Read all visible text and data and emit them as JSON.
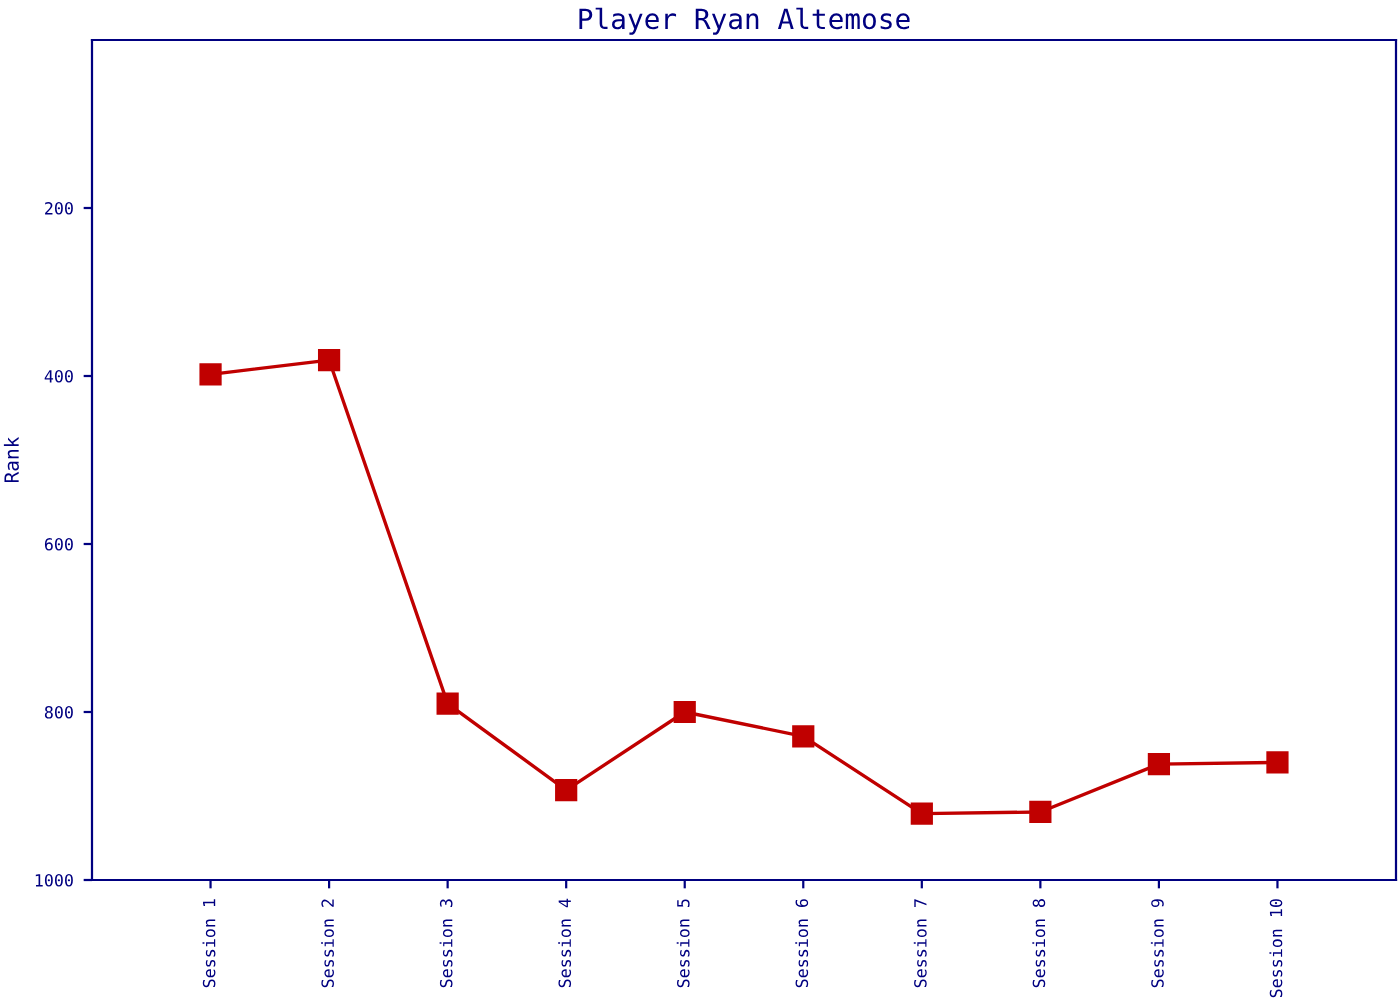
{
  "chart_data": {
    "type": "line",
    "title": "Player Ryan Altemose",
    "ylabel": "Rank",
    "categories": [
      "Session 1",
      "Session 2",
      "Session 3",
      "Session 4",
      "Session 5",
      "Session 6",
      "Session 7",
      "Session 8",
      "Session 9",
      "Session 10"
    ],
    "series": [
      {
        "color": "#c00000",
        "values": [
          398,
          381,
          790,
          893,
          800,
          829,
          921,
          919,
          862,
          860
        ]
      }
    ],
    "ylim": [
      1000,
      0
    ],
    "yticks": [
      200,
      400,
      600,
      800,
      1000
    ],
    "grid": false,
    "legend": false,
    "marker": "square",
    "line_style": "solid"
  }
}
